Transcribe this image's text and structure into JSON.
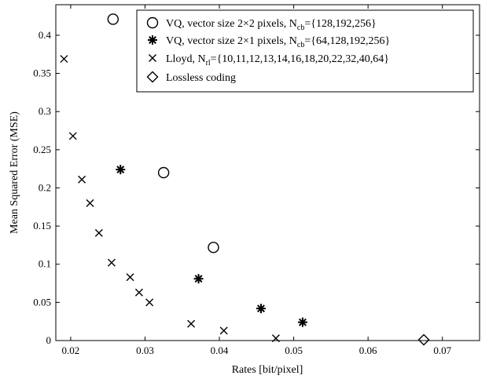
{
  "chart_data": {
    "type": "scatter",
    "title": "",
    "xlabel": "Rates [bit/pixel]",
    "ylabel": "Mean Squared Error (MSE)",
    "xlim": [
      0.018,
      0.075
    ],
    "ylim": [
      0,
      0.44
    ],
    "x_ticks": [
      "0.02",
      "0.03",
      "0.04",
      "0.05",
      "0.06",
      "0.07"
    ],
    "y_ticks": [
      "0",
      "0.05",
      "0.1",
      "0.15",
      "0.2",
      "0.25",
      "0.3",
      "0.35",
      "0.4"
    ],
    "grid": false,
    "legend_position": "top-right",
    "series": [
      {
        "legend_main": "VQ, vector size 2×2 pixels, N",
        "legend_sub": "cb",
        "legend_tail": "={128,192,256}",
        "marker": "circle",
        "x": [
          0.0257,
          0.0325,
          0.0392
        ],
        "y": [
          0.421,
          0.22,
          0.122
        ]
      },
      {
        "legend_main": "VQ, vector size 2×1 pixels, N",
        "legend_sub": "cb",
        "legend_tail": "={64,128,192,256}",
        "marker": "asterisk",
        "x": [
          0.0267,
          0.0372,
          0.0456,
          0.0512
        ],
        "y": [
          0.224,
          0.081,
          0.042,
          0.024
        ]
      },
      {
        "legend_main": "Lloyd, N",
        "legend_sub": "rl",
        "legend_tail": "={10,11,12,13,14,16,18,20,22,32,40,64}",
        "marker": "x",
        "x": [
          0.0191,
          0.0203,
          0.0215,
          0.0226,
          0.0238,
          0.0255,
          0.028,
          0.0292,
          0.0306,
          0.0362,
          0.0406,
          0.0476
        ],
        "y": [
          0.369,
          0.268,
          0.211,
          0.18,
          0.141,
          0.102,
          0.083,
          0.063,
          0.05,
          0.022,
          0.013,
          0.003
        ]
      },
      {
        "legend_main": "Lossless coding",
        "legend_sub": "",
        "legend_tail": "",
        "marker": "diamond",
        "x": [
          0.0675
        ],
        "y": [
          0.001
        ]
      }
    ]
  }
}
